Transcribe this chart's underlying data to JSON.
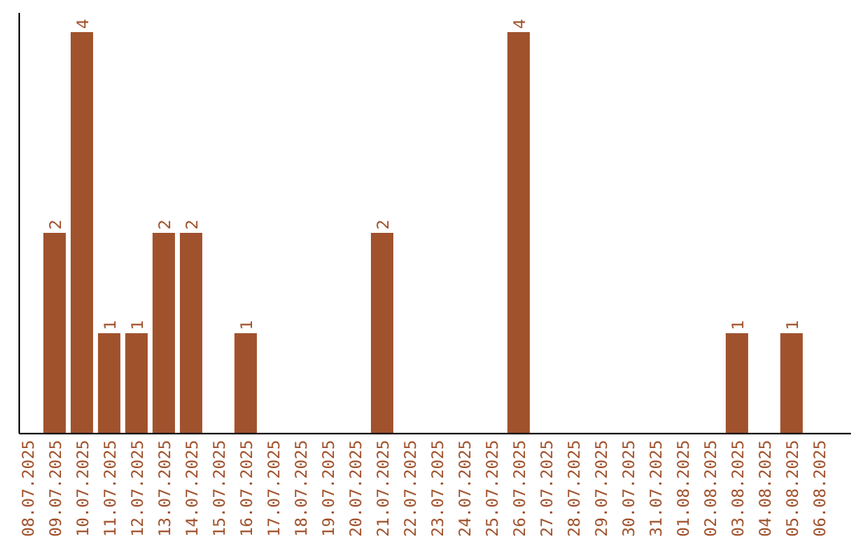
{
  "chart_data": {
    "type": "bar",
    "categories": [
      "08.07.2025",
      "09.07.2025",
      "10.07.2025",
      "11.07.2025",
      "12.07.2025",
      "13.07.2025",
      "14.07.2025",
      "15.07.2025",
      "16.07.2025",
      "17.07.2025",
      "18.07.2025",
      "19.07.2025",
      "20.07.2025",
      "21.07.2025",
      "22.07.2025",
      "23.07.2025",
      "24.07.2025",
      "25.07.2025",
      "26.07.2025",
      "27.07.2025",
      "28.07.2025",
      "29.07.2025",
      "30.07.2025",
      "31.07.2025",
      "01.08.2025",
      "02.08.2025",
      "03.08.2025",
      "04.08.2025",
      "05.08.2025",
      "06.08.2025"
    ],
    "values": [
      0,
      2,
      4,
      1,
      1,
      2,
      2,
      0,
      1,
      0,
      0,
      0,
      0,
      2,
      0,
      0,
      0,
      0,
      4,
      0,
      0,
      0,
      0,
      0,
      0,
      0,
      1,
      0,
      1,
      0
    ],
    "value_labels": [
      null,
      "2",
      "4",
      "1",
      "1",
      "2",
      "2",
      null,
      "1",
      null,
      null,
      null,
      null,
      "2",
      null,
      null,
      null,
      null,
      "4",
      null,
      null,
      null,
      null,
      null,
      null,
      null,
      "1",
      null,
      "1",
      null
    ],
    "color": "#a0522d",
    "ylim": [
      0,
      4
    ],
    "tick_labels": "x"
  }
}
